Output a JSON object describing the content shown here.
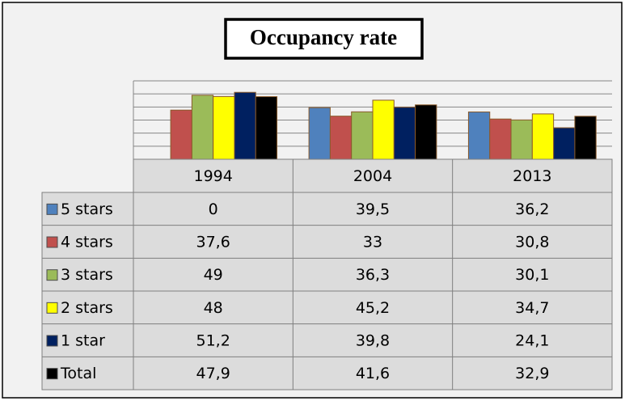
{
  "chart_data": {
    "type": "bar",
    "title": "Occupancy rate",
    "categories": [
      "1994",
      "2004",
      "2013"
    ],
    "series": [
      {
        "name": "5 stars",
        "color": "#4f81bd",
        "values": [
          0,
          39.5,
          36.2
        ],
        "value_labels": [
          "0",
          "39,5",
          "36,2"
        ]
      },
      {
        "name": "4 stars",
        "color": "#c0504d",
        "values": [
          37.6,
          33,
          30.8
        ],
        "value_labels": [
          "37,6",
          "33",
          "30,8"
        ]
      },
      {
        "name": "3 stars",
        "color": "#9bbb59",
        "values": [
          49,
          36.3,
          30.1
        ],
        "value_labels": [
          "49",
          "36,3",
          "30,1"
        ]
      },
      {
        "name": "2 stars",
        "color": "#ffff00",
        "values": [
          48,
          45.2,
          34.7
        ],
        "value_labels": [
          "48",
          "45,2",
          "34,7"
        ]
      },
      {
        "name": "1 star",
        "color": "#002060",
        "values": [
          51.2,
          39.8,
          24.1
        ],
        "value_labels": [
          "51,2",
          "39,8",
          "24,1"
        ]
      },
      {
        "name": "Total",
        "color": "#000000",
        "values": [
          47.9,
          41.6,
          32.9
        ],
        "value_labels": [
          "47,9",
          "41,6",
          "32,9"
        ]
      }
    ],
    "ylim": [
      0,
      60
    ],
    "yticks": [
      0,
      10,
      20,
      30,
      40,
      50,
      60
    ],
    "grid": true
  }
}
